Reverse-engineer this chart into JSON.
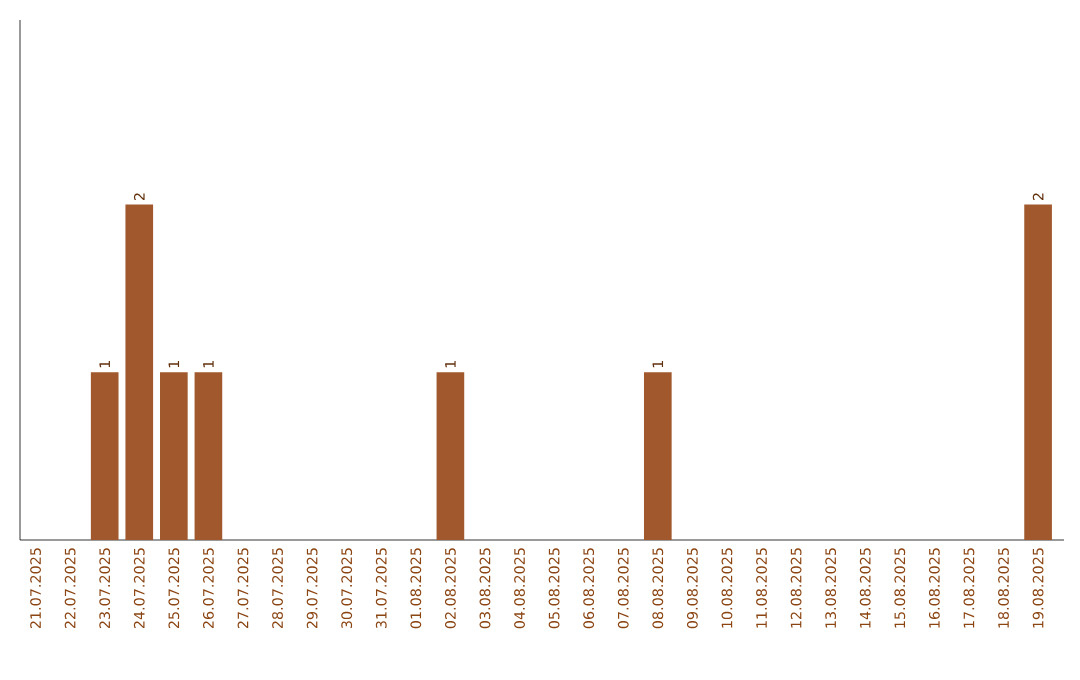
{
  "chart_data": {
    "type": "bar",
    "categories": [
      "21.07.2025",
      "22.07.2025",
      "23.07.2025",
      "24.07.2025",
      "25.07.2025",
      "26.07.2025",
      "27.07.2025",
      "28.07.2025",
      "29.07.2025",
      "30.07.2025",
      "31.07.2025",
      "01.08.2025",
      "02.08.2025",
      "03.08.2025",
      "04.08.2025",
      "05.08.2025",
      "06.08.2025",
      "07.08.2025",
      "08.08.2025",
      "09.08.2025",
      "10.08.2025",
      "11.08.2025",
      "12.08.2025",
      "13.08.2025",
      "14.08.2025",
      "15.08.2025",
      "16.08.2025",
      "17.08.2025",
      "18.08.2025",
      "19.08.2025"
    ],
    "values": [
      0,
      0,
      1,
      2,
      1,
      1,
      0,
      0,
      0,
      0,
      0,
      0,
      1,
      0,
      0,
      0,
      0,
      0,
      1,
      0,
      0,
      0,
      0,
      0,
      0,
      0,
      0,
      0,
      0,
      2
    ],
    "value_labels": [
      null,
      null,
      "1",
      "2",
      "1",
      "1",
      null,
      null,
      null,
      null,
      null,
      null,
      "1",
      null,
      null,
      null,
      null,
      null,
      "1",
      null,
      null,
      null,
      null,
      null,
      null,
      null,
      null,
      null,
      null,
      "2"
    ],
    "color": "#a0582c",
    "ylim": [
      0,
      3.1
    ],
    "tick_labels": "x"
  }
}
